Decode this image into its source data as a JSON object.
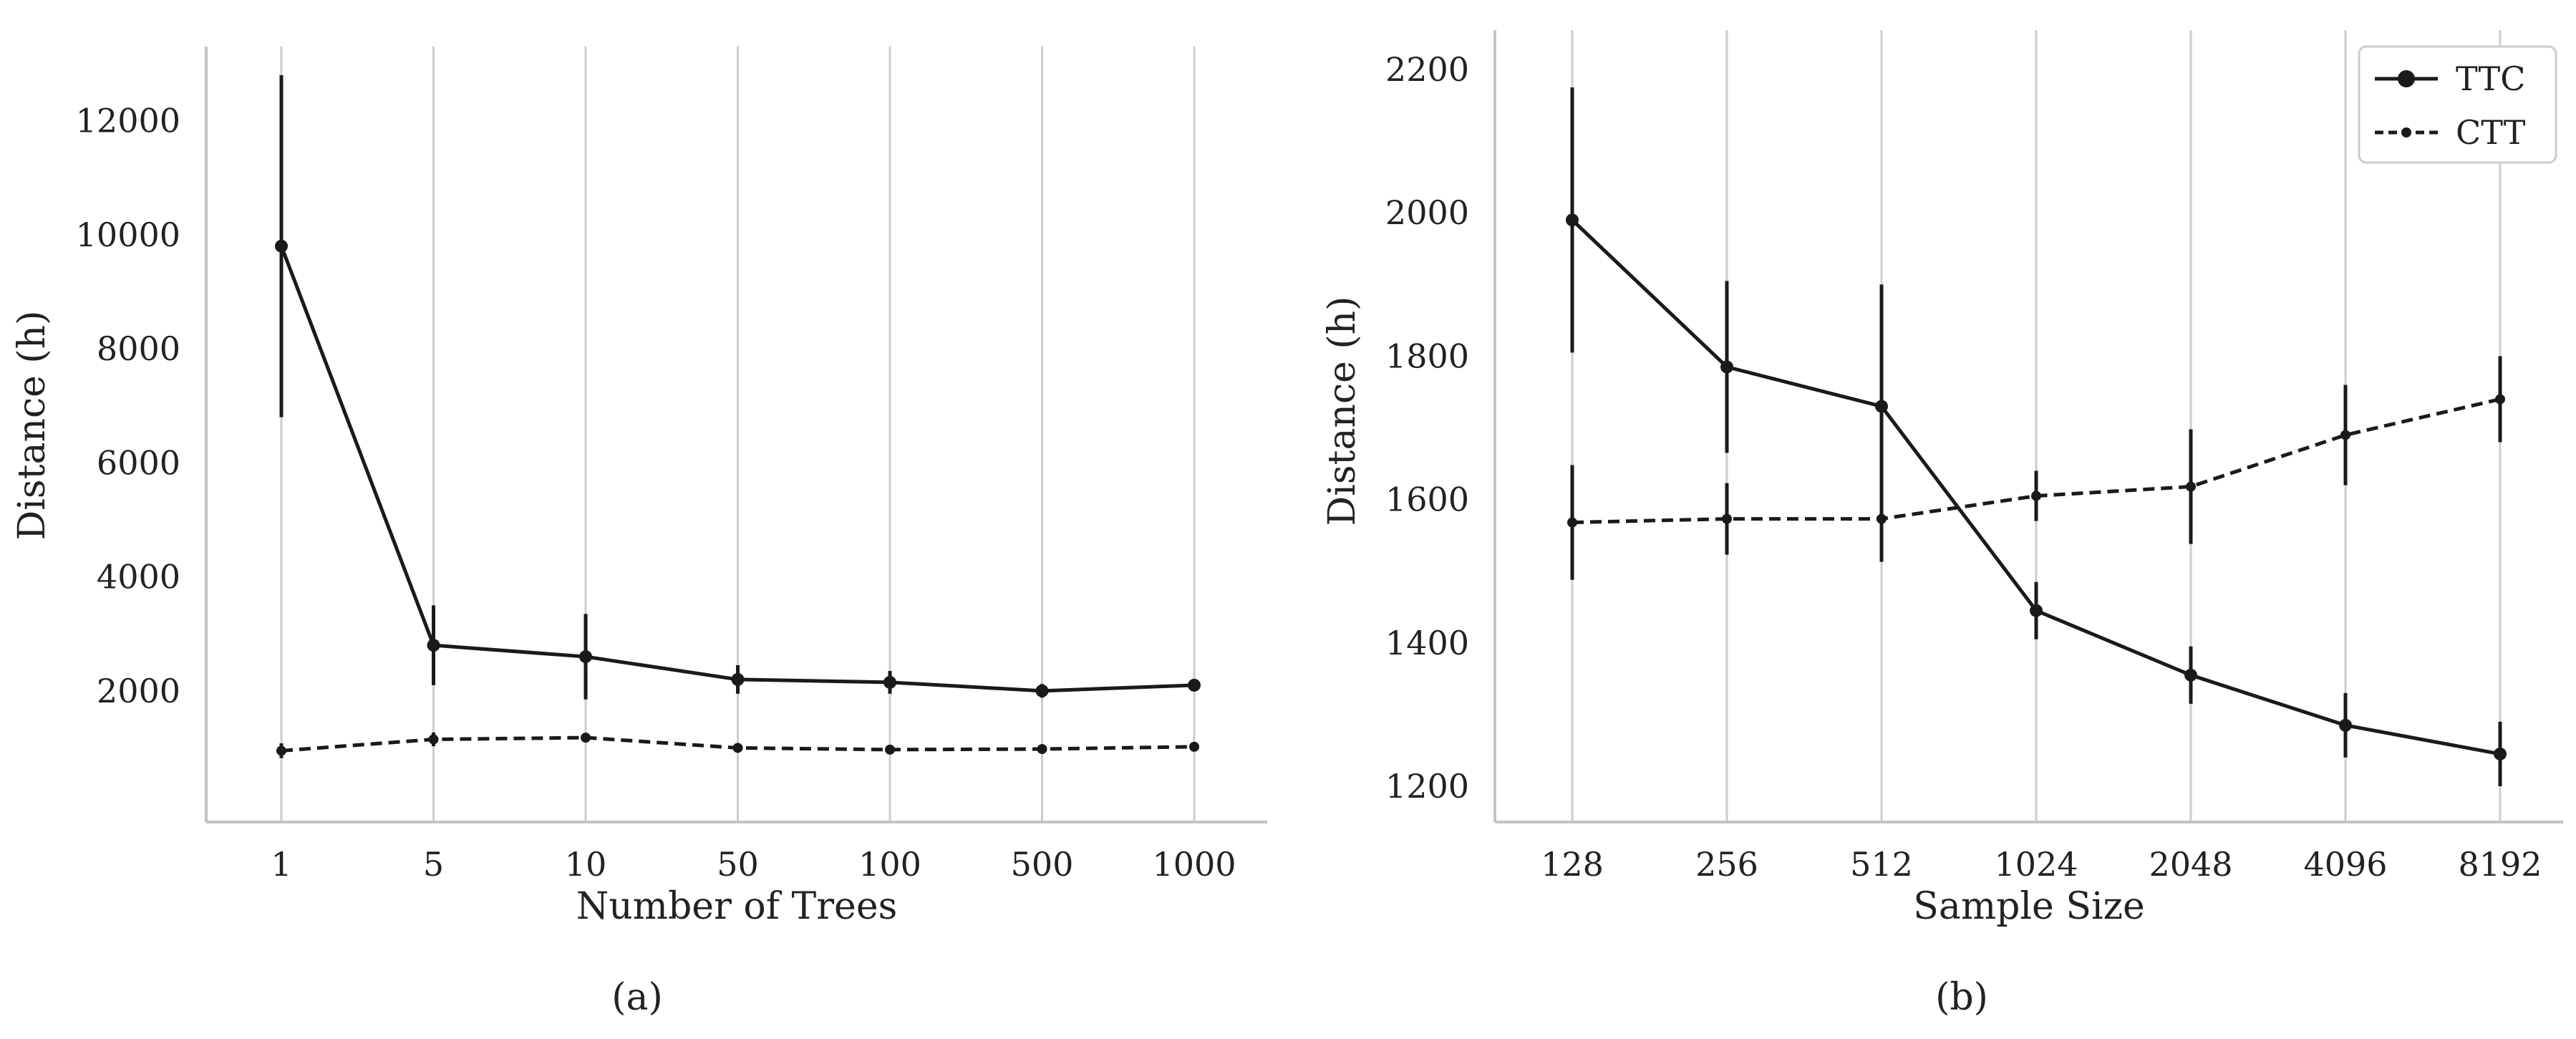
{
  "colors": {
    "line": "#1a1a1a",
    "grid": "#cccccc",
    "axis": "#c4c4c4",
    "background": "#ffffff"
  },
  "chart_data": [
    {
      "type": "line",
      "panel_label": "(a)",
      "title": "",
      "xlabel": "Number of Trees",
      "ylabel": "Distance (h)",
      "categories": [
        "1",
        "5",
        "10",
        "50",
        "100",
        "500",
        "1000"
      ],
      "yticks": [
        "2000",
        "4000",
        "6000",
        "8000",
        "10000",
        "12000"
      ],
      "ylim": [
        -300,
        13300
      ],
      "grid": "vertical",
      "legend": "none",
      "series": [
        {
          "key": "ttc",
          "style": "solid",
          "values": [
            9800,
            2800,
            2600,
            2200,
            2150,
            2000,
            2100
          ],
          "err": [
            3000,
            700,
            750,
            250,
            200,
            120,
            100
          ]
        },
        {
          "key": "ctt",
          "style": "dashed",
          "values": [
            950,
            1150,
            1180,
            1000,
            970,
            980,
            1020
          ],
          "err": [
            130,
            120,
            80,
            60,
            40,
            40,
            40
          ]
        }
      ]
    },
    {
      "type": "line",
      "panel_label": "(b)",
      "title": "",
      "xlabel": "Sample Size",
      "ylabel": "Distance (h)",
      "categories": [
        "128",
        "256",
        "512",
        "1024",
        "2048",
        "4096",
        "8192"
      ],
      "yticks": [
        "1200",
        "1400",
        "1600",
        "1800",
        "2000",
        "2200"
      ],
      "ylim": [
        1150,
        2255
      ],
      "grid": "vertical",
      "legend": "top-right",
      "series": [
        {
          "key": "ttc",
          "name": "TTC",
          "style": "solid",
          "values": [
            1990,
            1785,
            1730,
            1445,
            1355,
            1285,
            1245
          ],
          "err": [
            185,
            120,
            170,
            40,
            40,
            45,
            45
          ]
        },
        {
          "key": "ctt",
          "name": "CTT",
          "style": "dashed",
          "values": [
            1568,
            1573,
            1573,
            1605,
            1618,
            1690,
            1740
          ],
          "err": [
            80,
            50,
            60,
            35,
            80,
            70,
            60
          ]
        }
      ]
    }
  ]
}
